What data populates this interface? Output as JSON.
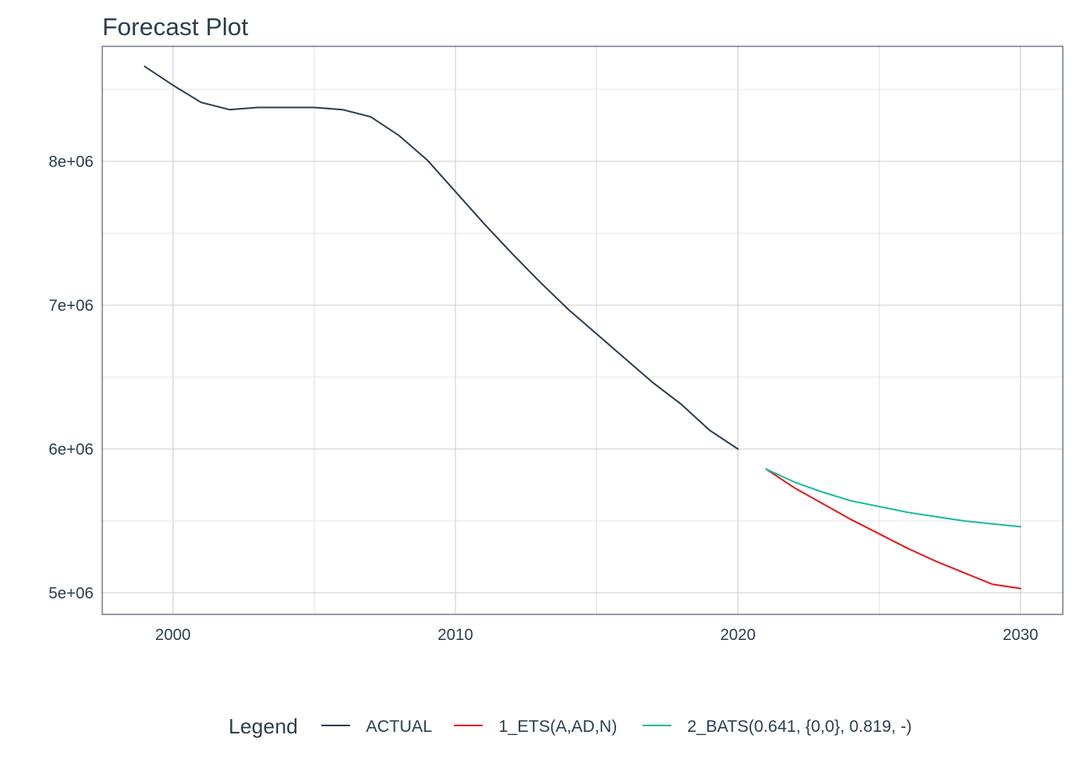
{
  "chart_data": {
    "type": "line",
    "title": "Forecast Plot",
    "xlabel": "",
    "ylabel": "",
    "xlim": [
      1997.5,
      2031.5
    ],
    "ylim": [
      4850000,
      8800000
    ],
    "x_ticks": [
      2000,
      2010,
      2020,
      2030
    ],
    "x_tick_labels": [
      "2000",
      "2010",
      "2020",
      "2030"
    ],
    "y_ticks": [
      5000000,
      6000000,
      7000000,
      8000000
    ],
    "y_tick_labels": [
      "5e+06",
      "6e+06",
      "7e+06",
      "8e+06"
    ],
    "grid": true,
    "legend": {
      "title": "Legend",
      "position": "bottom"
    },
    "series": [
      {
        "name": "ACTUAL",
        "color": "#2c3e50",
        "x": [
          1999,
          2000,
          2001,
          2002,
          2003,
          2004,
          2005,
          2006,
          2007,
          2008,
          2009,
          2010,
          2011,
          2012,
          2013,
          2014,
          2015,
          2016,
          2017,
          2018,
          2019,
          2020
        ],
        "values": [
          8660000,
          8530000,
          8410000,
          8360000,
          8375000,
          8375000,
          8375000,
          8360000,
          8310000,
          8180000,
          8010000,
          7790000,
          7570000,
          7360000,
          7160000,
          6970000,
          6800000,
          6630000,
          6460000,
          6310000,
          6130000,
          6000000
        ]
      },
      {
        "name": "1_ETS(A,AD,N)",
        "color": "#e31a1c",
        "x": [
          2021,
          2022,
          2023,
          2024,
          2025,
          2026,
          2027,
          2028,
          2029,
          2030
        ],
        "values": [
          5860000,
          5730000,
          5620000,
          5510000,
          5410000,
          5310000,
          5220000,
          5140000,
          5060000,
          5030000
        ]
      },
      {
        "name": "2_BATS(0.641, {0,0}, 0.819, -)",
        "color": "#18bc9c",
        "x": [
          2021,
          2022,
          2023,
          2024,
          2025,
          2026,
          2027,
          2028,
          2029,
          2030
        ],
        "values": [
          5860000,
          5770000,
          5700000,
          5640000,
          5600000,
          5560000,
          5530000,
          5500000,
          5480000,
          5460000
        ]
      }
    ]
  }
}
